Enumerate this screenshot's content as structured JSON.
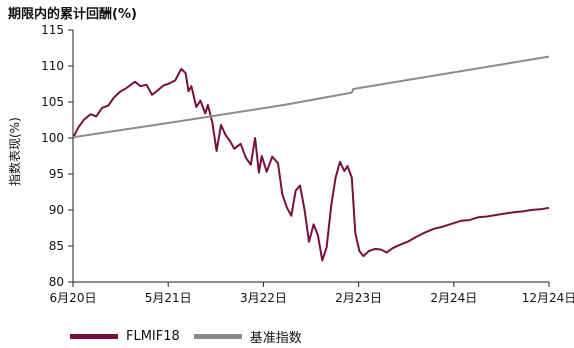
{
  "chart_data": {
    "type": "line",
    "title": "期限内的累计回酬(%)",
    "xlabel": "",
    "ylabel": "指数表现(%)",
    "ylim": [
      80,
      115
    ],
    "yticks": [
      "80",
      "85",
      "90",
      "95",
      "100",
      "105",
      "110",
      "115"
    ],
    "x_range": [
      "2020-06",
      "2024-12"
    ],
    "xticks": [
      "6月20日",
      "5月21日",
      "3月22日",
      "2月23日",
      "2月24日",
      "12月24日"
    ],
    "grid": false,
    "legend_position": "bottom-left",
    "series": [
      {
        "name": "FLMIF18",
        "color": "#7a0f3d",
        "points": [
          [
            "2020-06-01",
            100.0
          ],
          [
            "2020-06-20",
            101.5
          ],
          [
            "2020-07-10",
            102.6
          ],
          [
            "2020-08-01",
            103.3
          ],
          [
            "2020-08-20",
            103.0
          ],
          [
            "2020-09-10",
            104.2
          ],
          [
            "2020-10-01",
            104.5
          ],
          [
            "2020-10-20",
            105.6
          ],
          [
            "2020-11-10",
            106.4
          ],
          [
            "2020-12-01",
            106.9
          ],
          [
            "2021-01-01",
            107.8
          ],
          [
            "2021-01-20",
            107.2
          ],
          [
            "2021-02-10",
            107.4
          ],
          [
            "2021-03-01",
            106.0
          ],
          [
            "2021-03-20",
            106.6
          ],
          [
            "2021-04-10",
            107.3
          ],
          [
            "2021-05-01",
            107.6
          ],
          [
            "2021-05-20",
            108.0
          ],
          [
            "2021-06-10",
            109.6
          ],
          [
            "2021-06-25",
            109.0
          ],
          [
            "2021-07-05",
            106.5
          ],
          [
            "2021-07-15",
            107.2
          ],
          [
            "2021-08-01",
            104.3
          ],
          [
            "2021-08-15",
            105.2
          ],
          [
            "2021-09-01",
            103.4
          ],
          [
            "2021-09-10",
            104.6
          ],
          [
            "2021-09-25",
            102.2
          ],
          [
            "2021-10-10",
            98.2
          ],
          [
            "2021-10-25",
            101.8
          ],
          [
            "2021-11-10",
            100.4
          ],
          [
            "2021-11-25",
            99.6
          ],
          [
            "2021-12-10",
            98.5
          ],
          [
            "2022-01-01",
            99.2
          ],
          [
            "2022-01-20",
            97.2
          ],
          [
            "2022-02-05",
            96.3
          ],
          [
            "2022-02-20",
            100.0
          ],
          [
            "2022-03-05",
            95.2
          ],
          [
            "2022-03-15",
            97.5
          ],
          [
            "2022-04-01",
            95.3
          ],
          [
            "2022-04-20",
            97.4
          ],
          [
            "2022-05-10",
            96.5
          ],
          [
            "2022-05-25",
            92.2
          ],
          [
            "2022-06-10",
            90.3
          ],
          [
            "2022-06-25",
            89.2
          ],
          [
            "2022-07-10",
            92.7
          ],
          [
            "2022-07-25",
            93.4
          ],
          [
            "2022-08-10",
            90.0
          ],
          [
            "2022-08-25",
            85.6
          ],
          [
            "2022-09-10",
            88.0
          ],
          [
            "2022-09-25",
            86.5
          ],
          [
            "2022-10-10",
            83.0
          ],
          [
            "2022-10-25",
            84.8
          ],
          [
            "2022-11-10",
            90.7
          ],
          [
            "2022-11-25",
            94.5
          ],
          [
            "2022-12-10",
            96.7
          ],
          [
            "2022-12-25",
            95.4
          ],
          [
            "2023-01-05",
            96.1
          ],
          [
            "2023-01-20",
            94.5
          ],
          [
            "2023-02-01",
            86.8
          ],
          [
            "2023-02-15",
            84.3
          ],
          [
            "2023-03-01",
            83.6
          ],
          [
            "2023-03-20",
            84.3
          ],
          [
            "2023-04-10",
            84.6
          ],
          [
            "2023-05-01",
            84.5
          ],
          [
            "2023-05-20",
            84.1
          ],
          [
            "2023-06-10",
            84.7
          ],
          [
            "2023-07-01",
            85.1
          ],
          [
            "2023-08-01",
            85.6
          ],
          [
            "2023-09-01",
            86.3
          ],
          [
            "2023-10-01",
            86.9
          ],
          [
            "2023-11-01",
            87.4
          ],
          [
            "2023-12-01",
            87.7
          ],
          [
            "2024-01-01",
            88.1
          ],
          [
            "2024-02-01",
            88.5
          ],
          [
            "2024-03-01",
            88.6
          ],
          [
            "2024-04-01",
            89.0
          ],
          [
            "2024-05-01",
            89.1
          ],
          [
            "2024-06-01",
            89.3
          ],
          [
            "2024-07-01",
            89.5
          ],
          [
            "2024-08-01",
            89.7
          ],
          [
            "2024-09-01",
            89.8
          ],
          [
            "2024-10-01",
            90.0
          ],
          [
            "2024-11-01",
            90.1
          ],
          [
            "2024-12-01",
            90.3
          ]
        ]
      },
      {
        "name": "基准指数",
        "color": "#8c8c8c",
        "points": [
          [
            "2020-06-01",
            100.1
          ],
          [
            "2021-06-01",
            102.3
          ],
          [
            "2022-06-01",
            104.6
          ],
          [
            "2023-01-20",
            106.3
          ],
          [
            "2023-01-25",
            106.8
          ],
          [
            "2024-12-01",
            111.3
          ]
        ]
      }
    ]
  }
}
